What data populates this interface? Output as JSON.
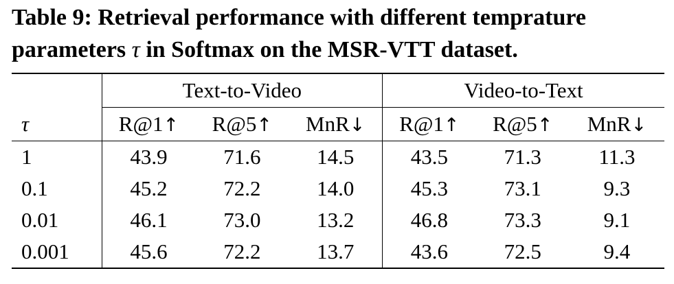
{
  "caption": {
    "line1": "Table 9: Retrieval performance with different temprature",
    "line2_prefix": "parameters ",
    "tau": "τ",
    "line2_suffix": " in Softmax on the MSR-VTT dataset."
  },
  "table": {
    "groups": [
      "Text-to-Video",
      "Video-to-Text"
    ],
    "tau_header": "τ",
    "metrics": [
      {
        "name": "R@1",
        "arrow": "↑"
      },
      {
        "name": "R@5",
        "arrow": "↑"
      },
      {
        "name": "MnR",
        "arrow": "↓"
      },
      {
        "name": "R@1",
        "arrow": "↑"
      },
      {
        "name": "R@5",
        "arrow": "↑"
      },
      {
        "name": "MnR",
        "arrow": "↓"
      }
    ],
    "rows": [
      {
        "tau": "1",
        "values": [
          "43.9",
          "71.6",
          "14.5",
          "43.5",
          "71.3",
          "11.3"
        ],
        "bold": false
      },
      {
        "tau": "0.1",
        "values": [
          "45.2",
          "72.2",
          "14.0",
          "45.3",
          "73.1",
          "9.3"
        ],
        "bold": false
      },
      {
        "tau": "0.01",
        "values": [
          "46.1",
          "73.0",
          "13.2",
          "46.8",
          "73.3",
          "9.1"
        ],
        "bold": true
      },
      {
        "tau": "0.001",
        "values": [
          "45.6",
          "72.2",
          "13.7",
          "43.6",
          "72.5",
          "9.4"
        ],
        "bold": false
      }
    ]
  }
}
